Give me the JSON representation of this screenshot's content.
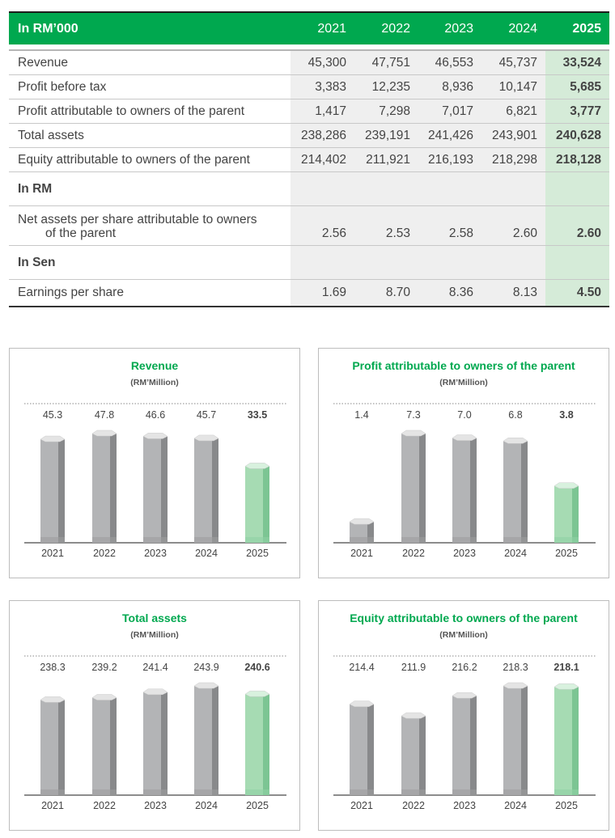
{
  "table": {
    "header": {
      "label": "In RM’000",
      "years": [
        "2021",
        "2022",
        "2023",
        "2024",
        "2025"
      ]
    },
    "rows": [
      {
        "label": "Revenue",
        "values": [
          "45,300",
          "47,751",
          "46,553",
          "45,737",
          "33,524"
        ]
      },
      {
        "label": "Profit before tax",
        "values": [
          "3,383",
          "12,235",
          "8,936",
          "10,147",
          "5,685"
        ]
      },
      {
        "label": "Profit attributable to owners of the parent",
        "values": [
          "1,417",
          "7,298",
          "7,017",
          "6,821",
          "3,777"
        ]
      },
      {
        "label": "Total assets",
        "values": [
          "238,286",
          "239,191",
          "241,426",
          "243,901",
          "240,628"
        ]
      },
      {
        "label": "Equity attributable to owners of the parent",
        "values": [
          "214,402",
          "211,921",
          "216,193",
          "218,298",
          "218,128"
        ]
      }
    ],
    "section_rm": "In RM",
    "nav_row": {
      "label_line1": "Net assets per share attributable to owners",
      "label_line2": "of the parent",
      "values": [
        "2.56",
        "2.53",
        "2.58",
        "2.60",
        "2.60"
      ]
    },
    "section_sen": "In Sen",
    "eps_row": {
      "label": "Earnings per share",
      "values": [
        "1.69",
        "8.70",
        "8.36",
        "8.13",
        "4.50"
      ]
    }
  },
  "colors": {
    "accent": "#00a84f",
    "bar_grey": "#a9aaac",
    "bar_highlight": "#a3d9b1"
  },
  "chart_data": [
    {
      "type": "bar",
      "title": "Revenue",
      "subtitle": "(RM’Million)",
      "categories": [
        "2021",
        "2022",
        "2023",
        "2024",
        "2025"
      ],
      "values": [
        45.3,
        47.8,
        46.6,
        45.7,
        33.5
      ],
      "labels": [
        "45.3",
        "47.8",
        "46.6",
        "45.7",
        "33.5"
      ],
      "highlight": "2025",
      "ylim": [
        0,
        47.8
      ]
    },
    {
      "type": "bar",
      "title": "Profit attributable to owners of the parent",
      "subtitle": "(RM’Million)",
      "categories": [
        "2021",
        "2022",
        "2023",
        "2024",
        "2025"
      ],
      "values": [
        1.4,
        7.3,
        7.0,
        6.8,
        3.8
      ],
      "labels": [
        "1.4",
        "7.3",
        "7.0",
        "6.8",
        "3.8"
      ],
      "highlight": "2025",
      "ylim": [
        0,
        7.3
      ]
    },
    {
      "type": "bar",
      "title": "Total assets",
      "subtitle": "(RM’Million)",
      "categories": [
        "2021",
        "2022",
        "2023",
        "2024",
        "2025"
      ],
      "values": [
        238.3,
        239.2,
        241.4,
        243.9,
        240.6
      ],
      "labels": [
        "238.3",
        "239.2",
        "241.4",
        "243.9",
        "240.6"
      ],
      "highlight": "2025",
      "ylim": [
        200,
        243.9
      ]
    },
    {
      "type": "bar",
      "title": "Equity attributable to owners of the parent",
      "subtitle": "(RM’Million)",
      "categories": [
        "2021",
        "2022",
        "2023",
        "2024",
        "2025"
      ],
      "values": [
        214.4,
        211.9,
        216.2,
        218.3,
        218.1
      ],
      "labels": [
        "214.4",
        "211.9",
        "216.2",
        "218.3",
        "218.1"
      ],
      "highlight": "2025",
      "ylim": [
        195,
        218.3
      ]
    }
  ]
}
